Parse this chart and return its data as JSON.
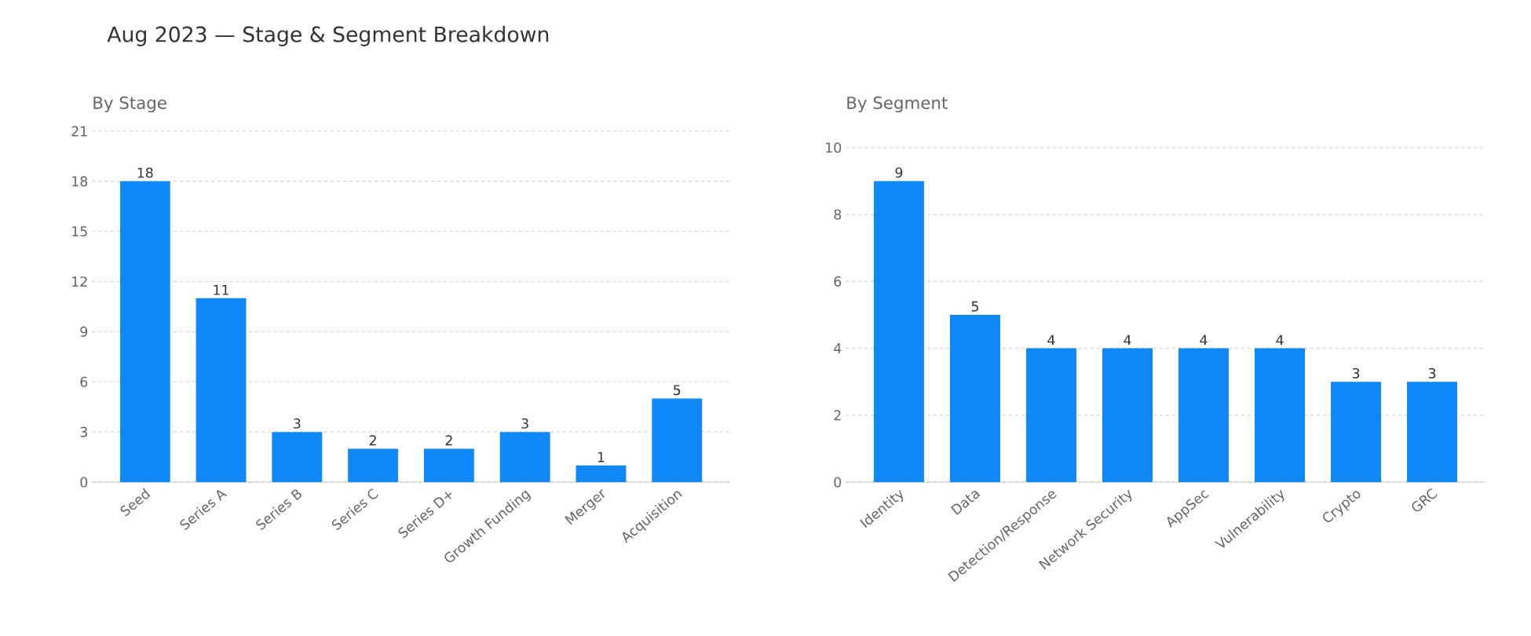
{
  "chart_data": [
    {
      "type": "bar",
      "title": "Aug 2023 — Stage & Segment Breakdown",
      "subtitle": "By Stage",
      "categories": [
        "Seed",
        "Series A",
        "Series B",
        "Series C",
        "Series D+",
        "Growth Funding",
        "Merger",
        "Acquisition"
      ],
      "values": [
        18,
        11,
        3,
        2,
        2,
        3,
        1,
        5
      ],
      "color": "#1188f8",
      "ylim": [
        0,
        21
      ],
      "yticks": [
        0,
        3,
        6,
        9,
        12,
        15,
        18,
        21
      ],
      "grid": "y",
      "data_labels": true
    },
    {
      "type": "bar",
      "subtitle": "By Segment",
      "categories": [
        "Identity",
        "Data",
        "Detection/Response",
        "Network Security",
        "AppSec",
        "Vulnerability",
        "Crypto",
        "GRC"
      ],
      "values": [
        9,
        5,
        4,
        4,
        4,
        4,
        3,
        3
      ],
      "color": "#1188f8",
      "ylim": [
        0,
        10
      ],
      "yticks": [
        0,
        2,
        4,
        6,
        8,
        10
      ],
      "grid": "y",
      "data_labels": true
    }
  ]
}
